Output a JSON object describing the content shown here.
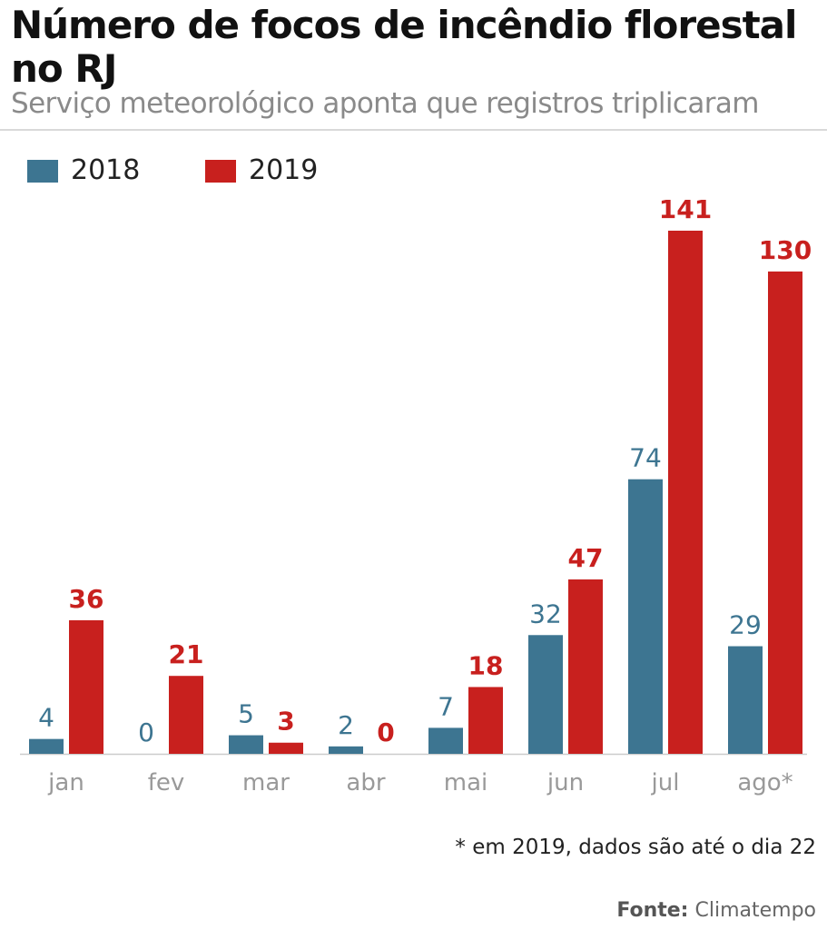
{
  "header": {
    "title": "Número de focos de incêndio florestal no RJ",
    "subtitle": "Serviço meteorológico aponta que registros triplicaram"
  },
  "footer": {
    "footnote": "* em 2019, dados são até o dia 22",
    "source_label": "Fonte:",
    "source_name": "Climatempo"
  },
  "chart_data": {
    "type": "bar",
    "categories": [
      "jan",
      "fev",
      "mar",
      "abr",
      "mai",
      "jun",
      "jul",
      "ago*"
    ],
    "series": [
      {
        "name": "2018",
        "color": "#3d7591",
        "values": [
          4,
          0,
          5,
          2,
          7,
          32,
          74,
          29
        ]
      },
      {
        "name": "2019",
        "color": "#c8201e",
        "values": [
          36,
          21,
          3,
          0,
          18,
          47,
          141,
          130
        ]
      }
    ],
    "ylim": [
      0,
      141
    ],
    "grid": false,
    "legend": "top-left",
    "data_labels": true
  }
}
